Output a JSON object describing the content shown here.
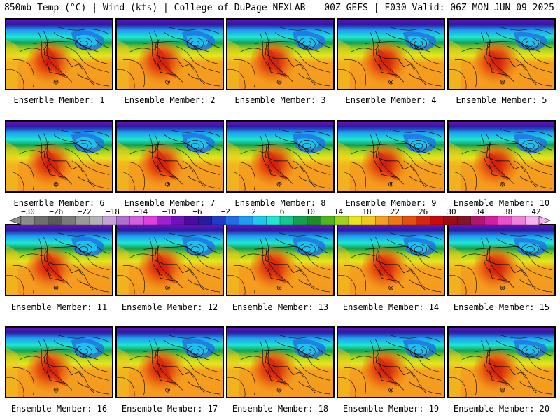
{
  "header": {
    "left": "850mb Temp (°C) | Wind (kts) | College of DuPage NEXLAB",
    "right": "00Z GEFS | F030 Valid: 06Z MON JUN 09 2025"
  },
  "members": [
    {
      "label": "Ensemble Member: 1"
    },
    {
      "label": "Ensemble Member: 2"
    },
    {
      "label": "Ensemble Member: 3"
    },
    {
      "label": "Ensemble Member: 4"
    },
    {
      "label": "Ensemble Member: 5"
    },
    {
      "label": "Ensemble Member: 6"
    },
    {
      "label": "Ensemble Member: 7"
    },
    {
      "label": "Ensemble Member: 8"
    },
    {
      "label": "Ensemble Member: 9"
    },
    {
      "label": "Ensemble Member: 10"
    },
    {
      "label": "Ensemble Member: 11"
    },
    {
      "label": "Ensemble Member: 12"
    },
    {
      "label": "Ensemble Member: 13"
    },
    {
      "label": "Ensemble Member: 14"
    },
    {
      "label": "Ensemble Member: 15"
    },
    {
      "label": "Ensemble Member: 16"
    },
    {
      "label": "Ensemble Member: 17"
    },
    {
      "label": "Ensemble Member: 18"
    },
    {
      "label": "Ensemble Member: 19"
    },
    {
      "label": "Ensemble Member: 20"
    }
  ],
  "colorbar": {
    "ticks": [
      "−30",
      "−26",
      "−22",
      "−18",
      "−14",
      "−10",
      "−6",
      "−2",
      "2",
      "6",
      "10",
      "14",
      "18",
      "22",
      "26",
      "30",
      "34",
      "38",
      "42"
    ],
    "colors": [
      "#8c8c8c",
      "#6e6e6e",
      "#5a5a5a",
      "#7a7a7a",
      "#9a9a9a",
      "#b4b4b4",
      "#c8a0d8",
      "#b070d0",
      "#d060e0",
      "#e040e0",
      "#a020d0",
      "#7010c0",
      "#4b0aa0",
      "#2a1aa0",
      "#1e3cc8",
      "#1e6ee6",
      "#1e9cf0",
      "#1ec8f0",
      "#1ee6d2",
      "#10c890",
      "#14a050",
      "#208c28",
      "#50b41e",
      "#a0d21e",
      "#e6e61e",
      "#f0c81e",
      "#f5a01e",
      "#f07814",
      "#e6500f",
      "#d2280f",
      "#c80a0a",
      "#a00a14",
      "#821428",
      "#b4146e",
      "#d21ea0",
      "#e650c8",
      "#f082dc",
      "#f5b4ee"
    ]
  },
  "map": {
    "cold_color": "#a020d0",
    "warm_core_color": "#d2280f"
  }
}
